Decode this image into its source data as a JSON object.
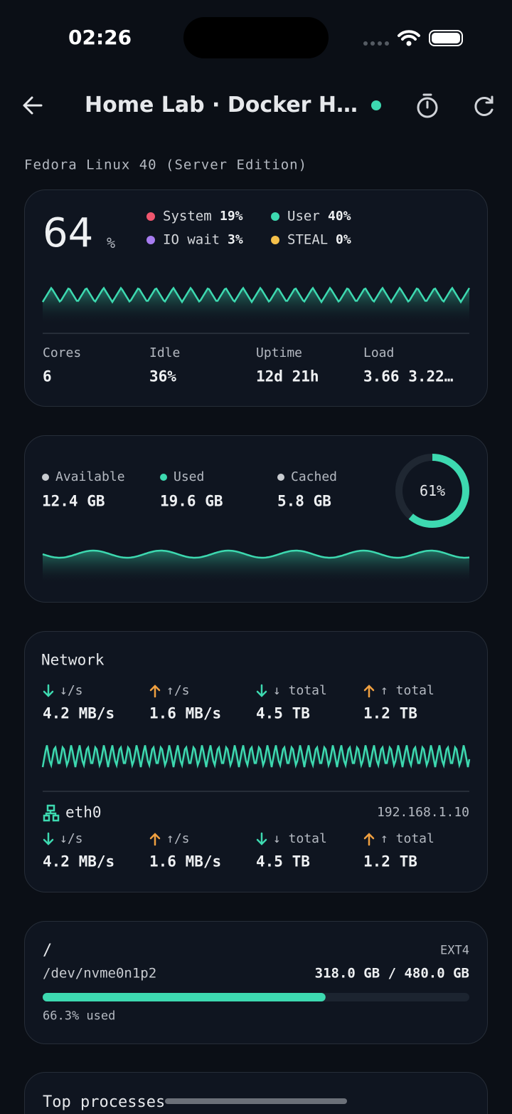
{
  "status_bar": {
    "time": "02:26"
  },
  "header": {
    "title": "Home Lab · Docker H…",
    "subtitle": "Fedora Linux 40 (Server Edition)"
  },
  "cpu": {
    "usage": "64",
    "unit": "%",
    "breakdown": [
      {
        "name": "System",
        "value": "19%",
        "color": "#f0566e"
      },
      {
        "name": "User",
        "value": "40%",
        "color": "#3dd9b0"
      },
      {
        "name": "IO wait",
        "value": "3%",
        "color": "#a77cf0"
      },
      {
        "name": "STEAL",
        "value": "0%",
        "color": "#f5c04a"
      }
    ],
    "stats": [
      {
        "label": "Cores",
        "value": "6"
      },
      {
        "label": "Idle",
        "value": "36%"
      },
      {
        "label": "Uptime",
        "value": "12d 21h"
      },
      {
        "label": "Load",
        "value": "3.66 3.22…"
      }
    ]
  },
  "memory": {
    "stats": [
      {
        "label": "Available",
        "value": "12.4 GB",
        "color": "#c8cbd0"
      },
      {
        "label": "Used",
        "value": "19.6 GB",
        "color": "#3dd9b0"
      },
      {
        "label": "Cached",
        "value": "5.8 GB",
        "color": "#c8cbd0"
      }
    ],
    "donut": {
      "value": 61,
      "label": "61%"
    }
  },
  "network": {
    "title": "Network",
    "stats": [
      {
        "label": "↓/s",
        "value": "4.2 MB/s",
        "dir": "down"
      },
      {
        "label": "↑/s",
        "value": "1.6 MB/s",
        "dir": "up"
      },
      {
        "label": "↓ total",
        "value": "4.5 TB",
        "dir": "down"
      },
      {
        "label": "↑ total",
        "value": "1.2 TB",
        "dir": "up"
      }
    ],
    "interface": {
      "name": "eth0",
      "ip": "192.168.1.10",
      "stats": [
        {
          "label": "↓/s",
          "value": "4.2 MB/s",
          "dir": "down"
        },
        {
          "label": "↑/s",
          "value": "1.6 MB/s",
          "dir": "up"
        },
        {
          "label": "↓ total",
          "value": "4.5 TB",
          "dir": "down"
        },
        {
          "label": "↑ total",
          "value": "1.2 TB",
          "dir": "up"
        }
      ]
    }
  },
  "disk": {
    "mount": "/",
    "fs": "EXT4",
    "device": "/dev/nvme0n1p2",
    "usage": "318.0 GB / 480.0 GB",
    "used_percent": {
      "value": 66.3,
      "label": "66.3% used"
    }
  },
  "processes": {
    "title": "Top processes"
  }
}
